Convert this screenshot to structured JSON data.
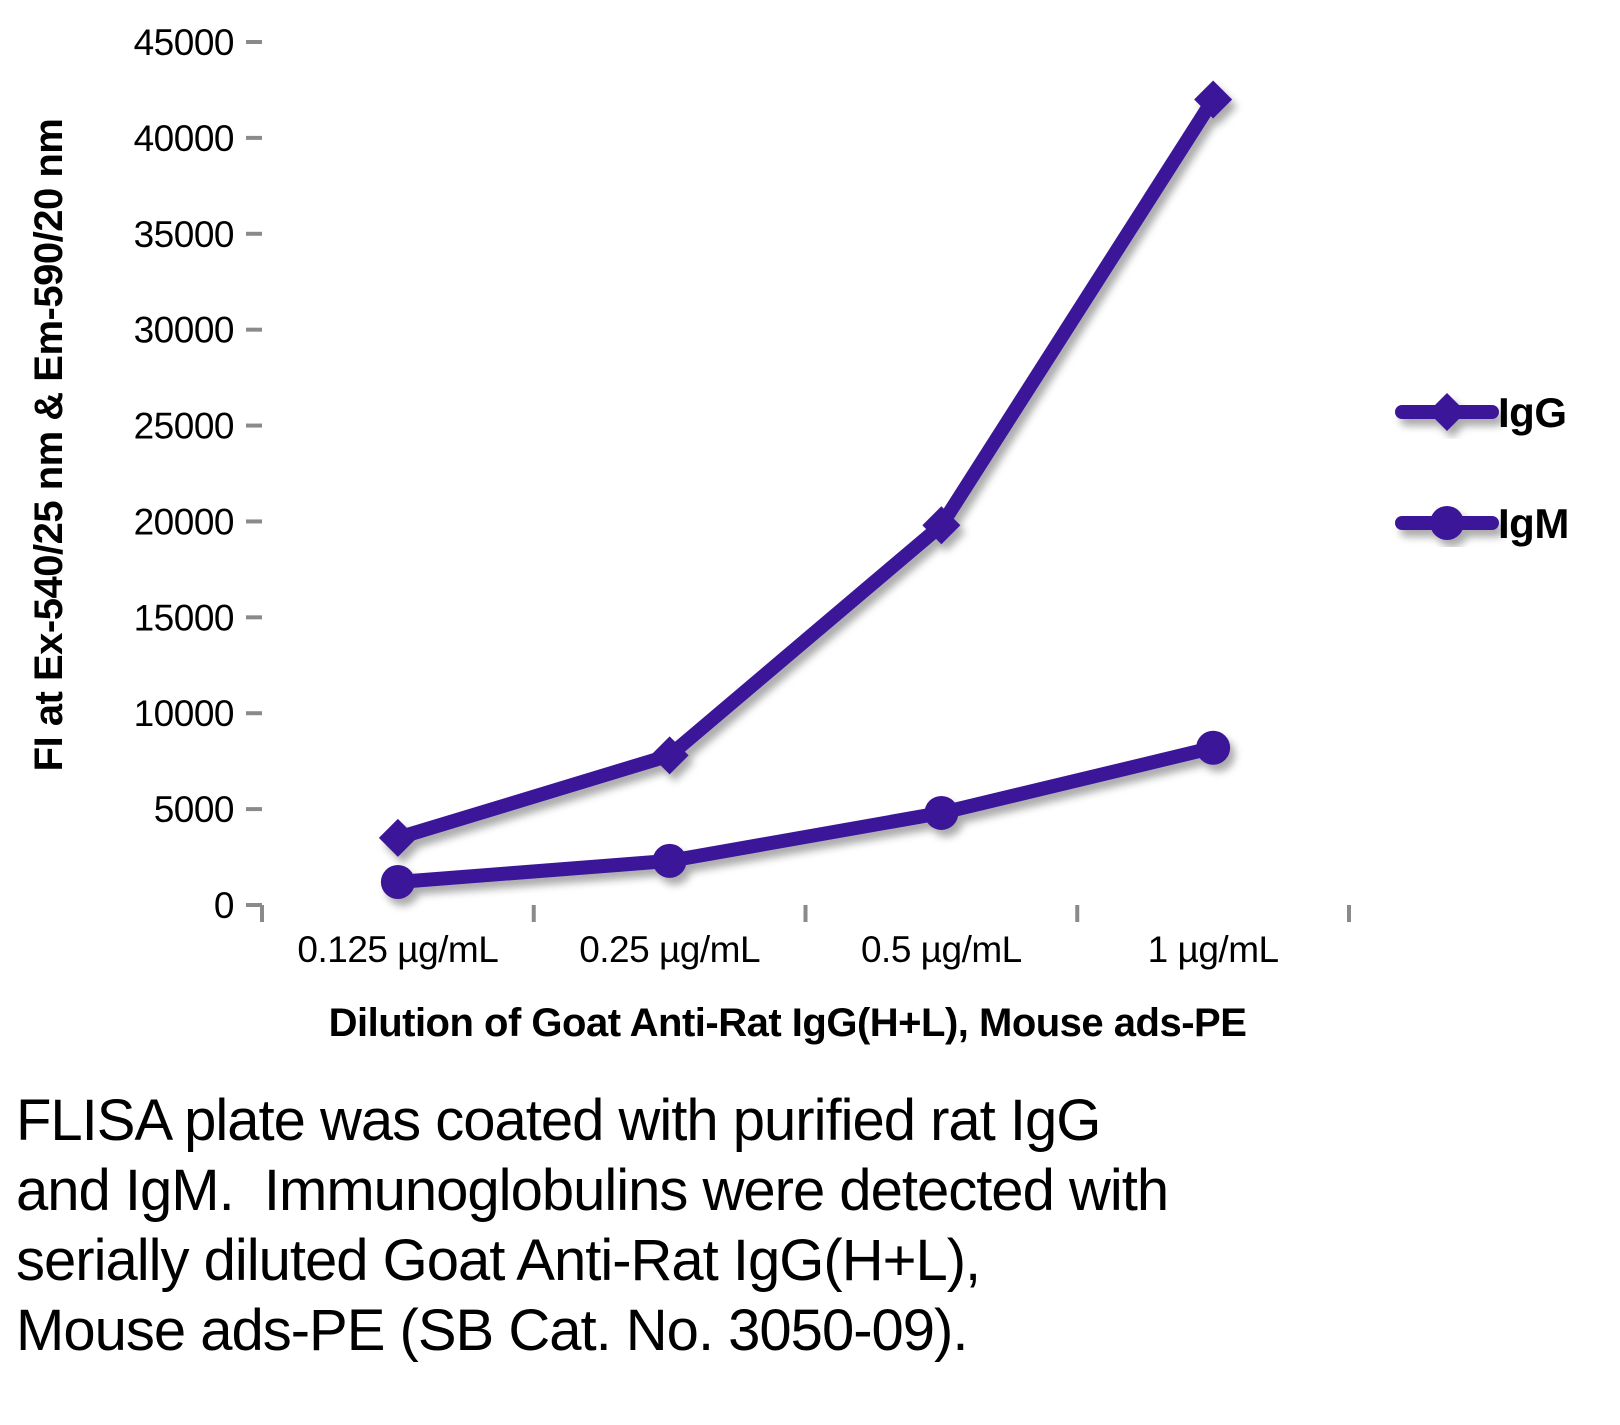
{
  "figure": {
    "caption": "FLISA plate was coated with purified rat IgG\nand IgM.  Immunoglobulins were detected with\nserially diluted Goat Anti-Rat IgG(H+L),\nMouse ads-PE (SB Cat. No. 3050-09)."
  },
  "chart_data": {
    "type": "line",
    "title": "",
    "xlabel": "Dilution of Goat Anti-Rat IgG(H+L), Mouse ads-PE",
    "ylabel": "FI at Ex-540/25 nm & Em-590/20 nm",
    "categories": [
      "0.125 µg/mL",
      "0.25 µg/mL",
      "0.5 µg/mL",
      "1 µg/mL"
    ],
    "series": [
      {
        "name": "IgG",
        "marker": "diamond",
        "values": [
          3500,
          7800,
          19800,
          42000
        ]
      },
      {
        "name": "IgM",
        "marker": "circle",
        "values": [
          1200,
          2300,
          4800,
          8200
        ]
      }
    ],
    "ylim": [
      0,
      45000
    ],
    "ytick_step": 5000,
    "grid": "horizontal-only",
    "legend_position": "right",
    "colors": {
      "series": "#3B1598",
      "gridline": "#A6A6A6",
      "axis": "#8A8A8A",
      "text": "#000000"
    }
  }
}
